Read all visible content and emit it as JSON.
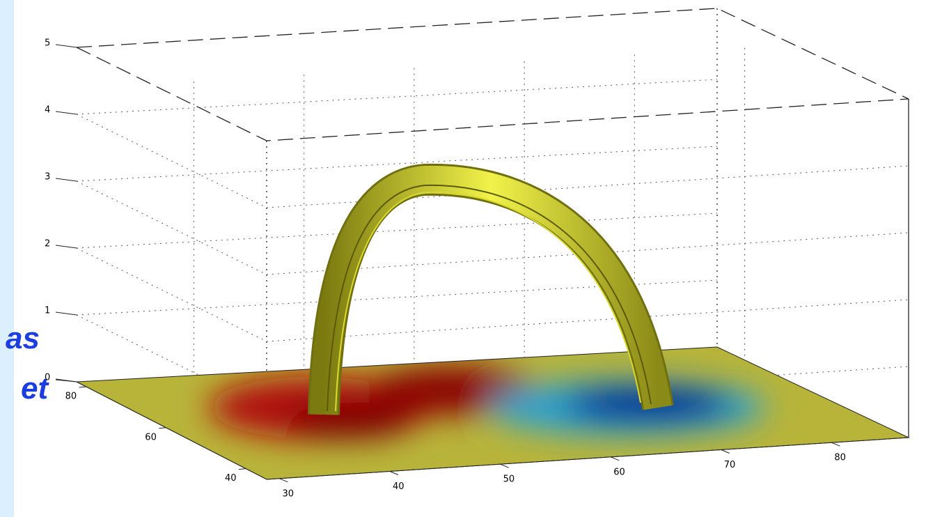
{
  "z_ticks": [
    0,
    1,
    2,
    3,
    4,
    5
  ],
  "y_ticks": [
    40,
    60,
    80
  ],
  "x_ticks": [
    30,
    40,
    50,
    60,
    70,
    80
  ],
  "fragments": [
    "as",
    "et"
  ]
}
